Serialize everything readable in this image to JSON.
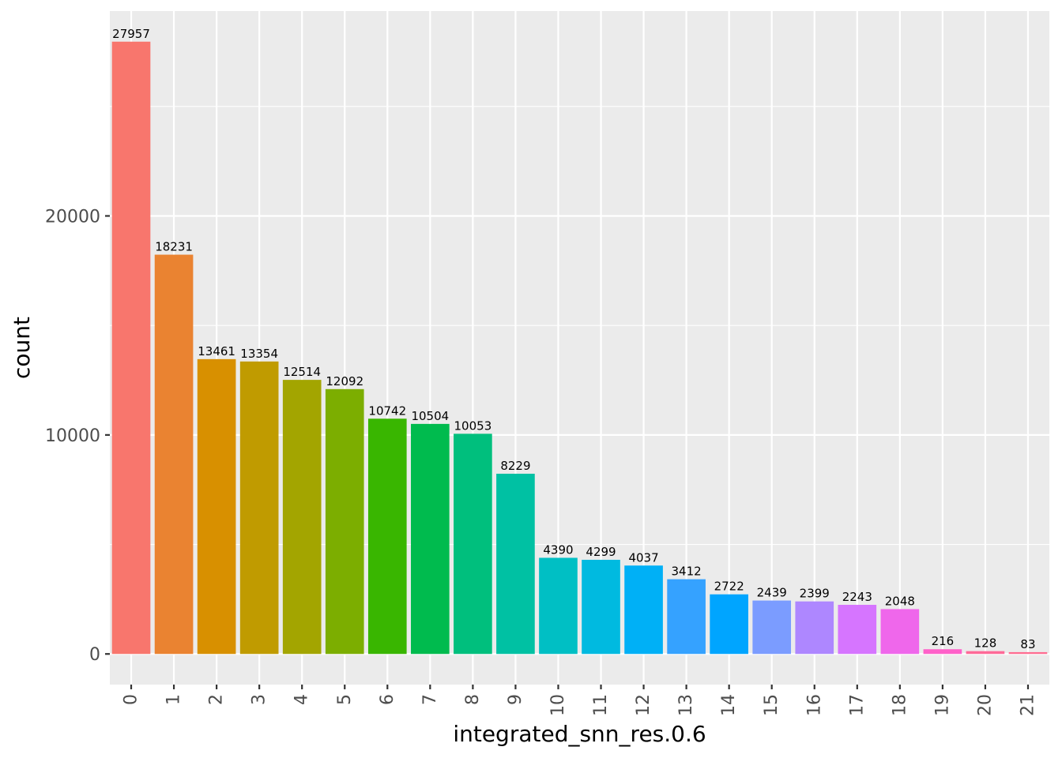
{
  "chart_data": {
    "type": "bar",
    "title": "",
    "xlabel": "integrated_snn_res.0.6",
    "ylabel": "count",
    "categories": [
      "0",
      "1",
      "2",
      "3",
      "4",
      "5",
      "6",
      "7",
      "8",
      "9",
      "10",
      "11",
      "12",
      "13",
      "14",
      "15",
      "16",
      "17",
      "18",
      "19",
      "20",
      "21"
    ],
    "values": [
      27957,
      18231,
      13461,
      13354,
      12514,
      12092,
      10742,
      10504,
      10053,
      8229,
      4390,
      4299,
      4037,
      3412,
      2722,
      2439,
      2399,
      2243,
      2048,
      216,
      128,
      83
    ],
    "data_labels": [
      "27957",
      "18231",
      "13461",
      "13354",
      "12514",
      "12092",
      "10742",
      "10504",
      "10053",
      "8229",
      "4390",
      "4299",
      "4037",
      "3412",
      "2722",
      "2439",
      "2399",
      "2243",
      "2048",
      "216",
      "128",
      "83"
    ],
    "colors": [
      "#F8766D",
      "#EA8331",
      "#D89000",
      "#C09B00",
      "#A3A500",
      "#7CAE00",
      "#39B600",
      "#00BB4E",
      "#00BF7D",
      "#00C1A3",
      "#00BFC4",
      "#00BAE0",
      "#00B0F6",
      "#35A2FF",
      "#00A5FF",
      "#7B9CFF",
      "#AE87FF",
      "#D675FF",
      "#EF67EB",
      "#FF61C9",
      "#FF6A98",
      "#FF6C91"
    ],
    "y_ticks": [
      0,
      10000,
      20000
    ],
    "y_tick_labels": [
      "0",
      "10000",
      "20000"
    ],
    "ylim": [
      -1397.85,
      29354.85
    ],
    "panel_background": "#EBEBEB",
    "grid_color": "#FFFFFF",
    "grid": true,
    "legend": "none"
  }
}
